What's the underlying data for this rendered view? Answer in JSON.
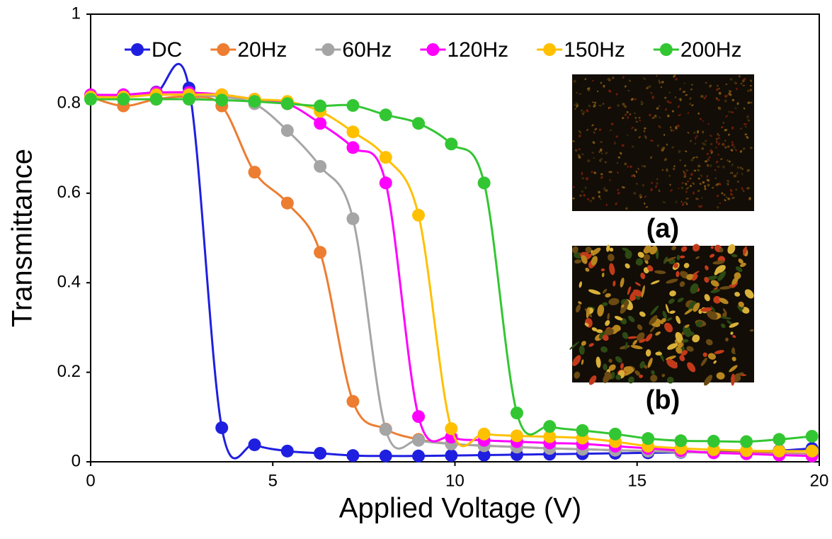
{
  "chart_data": {
    "type": "line",
    "x_label": "Applied Voltage (V)",
    "y_label": "Transmittance",
    "x": [
      0,
      0.9,
      1.8,
      2.7,
      3.6,
      4.5,
      5.4,
      6.3,
      7.2,
      8.1,
      9.0,
      9.9,
      10.8,
      11.7,
      12.6,
      13.5,
      14.4,
      15.3,
      16.2,
      17.1,
      18.0,
      18.9,
      19.8
    ],
    "series": [
      {
        "name": "DC",
        "color": "#1f1fe0",
        "values": [
          0.818,
          0.82,
          0.826,
          0.835,
          0.076,
          0.038,
          0.024,
          0.019,
          0.014,
          0.013,
          0.013,
          0.014,
          0.015,
          0.016,
          0.017,
          0.018,
          0.019,
          0.02,
          0.021,
          0.022,
          0.023,
          0.025,
          0.03
        ]
      },
      {
        "name": "20Hz",
        "color": "#ed7d31",
        "values": [
          0.815,
          0.795,
          0.81,
          0.815,
          0.795,
          0.647,
          0.578,
          0.468,
          0.135,
          0.073,
          0.05,
          0.04,
          0.036,
          0.033,
          0.03,
          0.028,
          0.026,
          0.024,
          0.022,
          0.021,
          0.02,
          0.019,
          0.018
        ]
      },
      {
        "name": "60Hz",
        "color": "#a5a5a5",
        "values": [
          0.815,
          0.82,
          0.82,
          0.82,
          0.815,
          0.8,
          0.74,
          0.66,
          0.543,
          0.072,
          0.048,
          0.04,
          0.036,
          0.033,
          0.03,
          0.028,
          0.026,
          0.024,
          0.022,
          0.02,
          0.018,
          0.017,
          0.016
        ]
      },
      {
        "name": "120Hz",
        "color": "#ff00ff",
        "values": [
          0.82,
          0.82,
          0.825,
          0.825,
          0.82,
          0.81,
          0.8,
          0.756,
          0.702,
          0.623,
          0.101,
          0.055,
          0.048,
          0.045,
          0.042,
          0.04,
          0.035,
          0.03,
          0.025,
          0.02,
          0.018,
          0.015,
          0.013
        ]
      },
      {
        "name": "150Hz",
        "color": "#ffc000",
        "values": [
          0.815,
          0.815,
          0.82,
          0.82,
          0.82,
          0.81,
          0.805,
          0.783,
          0.737,
          0.68,
          0.551,
          0.074,
          0.062,
          0.058,
          0.056,
          0.053,
          0.045,
          0.035,
          0.03,
          0.027,
          0.025,
          0.024,
          0.024
        ]
      },
      {
        "name": "200Hz",
        "color": "#33c633",
        "values": [
          0.81,
          0.81,
          0.81,
          0.81,
          0.808,
          0.805,
          0.8,
          0.795,
          0.796,
          0.775,
          0.756,
          0.71,
          0.623,
          0.109,
          0.079,
          0.07,
          0.062,
          0.052,
          0.047,
          0.046,
          0.045,
          0.05,
          0.057
        ]
      }
    ],
    "xlim": [
      0,
      20
    ],
    "xticks": [
      0,
      5,
      10,
      15,
      20
    ],
    "ylim": [
      0,
      1
    ],
    "yticks": [
      0,
      0.2,
      0.4,
      0.6,
      0.8,
      1
    ],
    "legend_position": "top",
    "annotations": [
      "(a)",
      "(b)"
    ]
  }
}
